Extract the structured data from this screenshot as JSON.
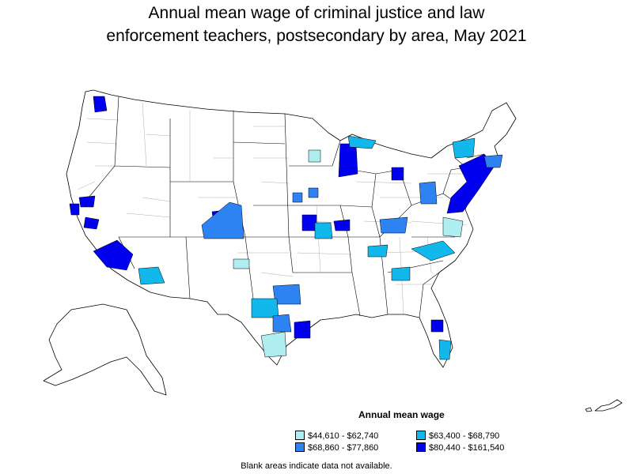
{
  "title_line1": "Annual mean wage of criminal justice and law",
  "title_line2": "enforcement teachers, postsecondary by area, May 2021",
  "legend": {
    "title": "Annual mean wage",
    "items": [
      {
        "label": "$44,610 - $62,740",
        "color": "#aeeef0"
      },
      {
        "label": "$63,400 - $68,790",
        "color": "#12b8ec"
      },
      {
        "label": "$68,860 - $77,860",
        "color": "#2d83f2"
      },
      {
        "label": "$80,440 - $161,540",
        "color": "#0000ee"
      }
    ]
  },
  "footnote": "Blank areas indicate data not available."
}
